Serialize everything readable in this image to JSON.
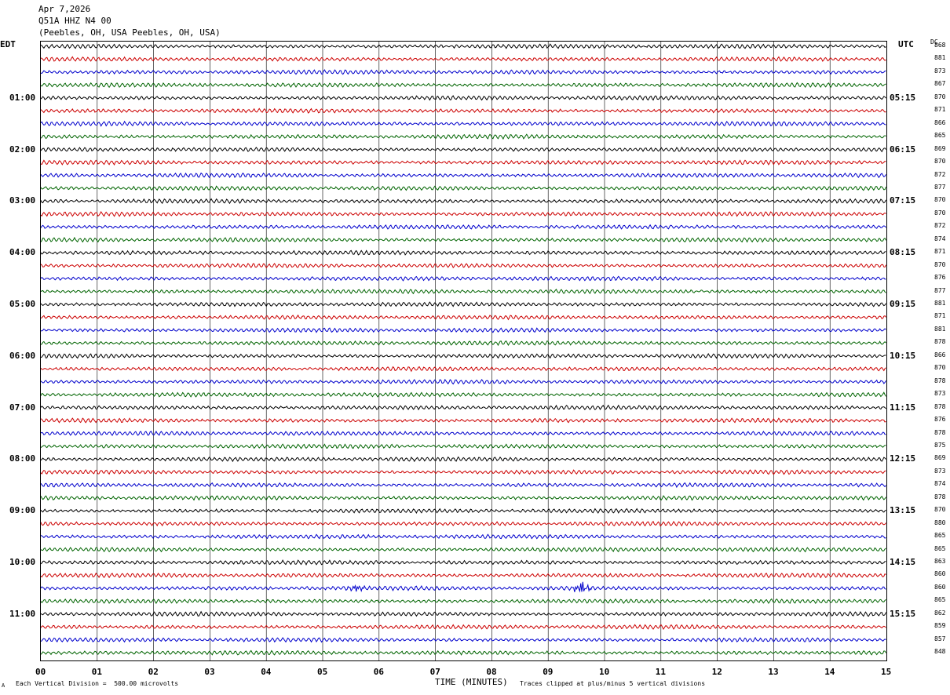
{
  "header": {
    "date": "Apr 7,2026",
    "station": "Q51A HHZ N4 00",
    "location": "(Peebles, OH, USA Peebles, OH, USA)"
  },
  "left_label": "EDT",
  "right_label": "UTC",
  "dc_label": "DC",
  "chart_data": {
    "type": "line",
    "title": "Apr 7,2026 Q51A HHZ N4 00 (Peebles, OH, USA Peebles, OH, USA)",
    "xlabel": "TIME (MINUTES)",
    "x_ticks": [
      "00",
      "01",
      "02",
      "03",
      "04",
      "05",
      "06",
      "07",
      "08",
      "09",
      "10",
      "11",
      "12",
      "13",
      "14",
      "15"
    ],
    "xlim": [
      0,
      15
    ],
    "edt_hour_labels": [
      "01:00",
      "02:00",
      "03:00",
      "04:00",
      "05:00",
      "06:00",
      "07:00",
      "08:00",
      "09:00",
      "10:00",
      "11:00"
    ],
    "utc_hour_labels": [
      "05:15",
      "06:15",
      "07:15",
      "08:15",
      "09:15",
      "10:15",
      "11:15",
      "12:15",
      "13:15",
      "14:15",
      "15:15"
    ],
    "trace_colors": [
      "#000000",
      "#cc0000",
      "#0000cc",
      "#006400"
    ],
    "trace_count": 48,
    "dc_offsets": [
      868,
      881,
      873,
      867,
      870,
      871,
      866,
      865,
      869,
      870,
      872,
      877,
      870,
      870,
      872,
      874,
      871,
      870,
      876,
      877,
      881,
      871,
      881,
      878,
      866,
      870,
      878,
      873,
      878,
      876,
      878,
      875,
      869,
      873,
      874,
      878,
      870,
      880,
      865,
      865,
      863,
      860,
      860,
      865,
      862,
      859,
      857,
      848
    ],
    "events": [
      {
        "trace_index": 42,
        "minute": 5.6,
        "description": "small burst"
      },
      {
        "trace_index": 42,
        "minute": 9.6,
        "description": "burst"
      }
    ],
    "vertical_scale": "Each Vertical Division =  500.00 microvolts",
    "clip_note": "Traces clipped at plus/minus 5 vertical divisions",
    "grid": true
  },
  "footer": {
    "scale_text": "Each Vertical Division =  500.00 microvolts",
    "time_label": "TIME (MINUTES)",
    "clip_text": "Traces clipped at plus/minus 5 vertical divisions",
    "corner_mark": "A"
  }
}
